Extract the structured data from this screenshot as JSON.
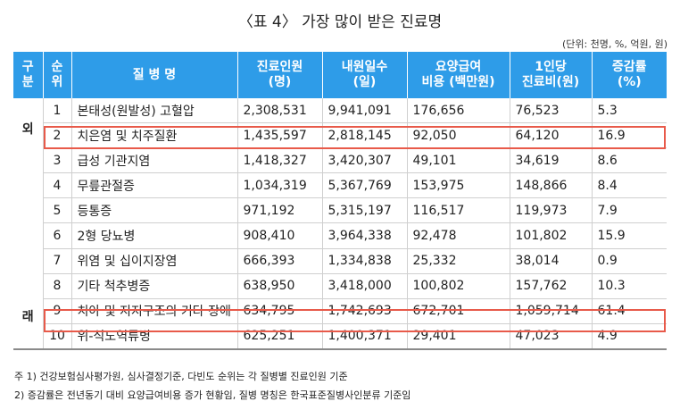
{
  "title": "〈표 4〉 가장 많이 받은 진료명",
  "unit": "(단위: 천명, %, 억원, 원)",
  "headers": {
    "group": [
      "구",
      "분"
    ],
    "rank": [
      "순",
      "위"
    ],
    "disease": "질 병 명",
    "patients": [
      "진료인원",
      "(명)"
    ],
    "days": [
      "내원일수",
      "(일)"
    ],
    "cost": [
      "요양급여",
      "비용 (백만원)"
    ],
    "per_person": [
      "1인당",
      "진료비(원)"
    ],
    "change": [
      "증감률",
      "(%)"
    ]
  },
  "group_label": [
    "외",
    "래"
  ],
  "rows": [
    {
      "rank": "1",
      "disease": "본태성(원발성) 고혈압",
      "patients": "2,308,531",
      "days": "9,941,091",
      "cost": "176,656",
      "per_person": "76,523",
      "change": "5.3"
    },
    {
      "rank": "2",
      "disease": "치은염 및 치주질환",
      "patients": "1,435,597",
      "days": "2,818,145",
      "cost": "92,050",
      "per_person": "64,120",
      "change": "16.9"
    },
    {
      "rank": "3",
      "disease": "급성 기관지염",
      "patients": "1,418,327",
      "days": "3,420,307",
      "cost": "49,101",
      "per_person": "34,619",
      "change": "8.6"
    },
    {
      "rank": "4",
      "disease": "무릎관절증",
      "patients": "1,034,319",
      "days": "5,367,769",
      "cost": "153,975",
      "per_person": "148,866",
      "change": "8.4"
    },
    {
      "rank": "5",
      "disease": "등통증",
      "patients": "971,192",
      "days": "5,315,197",
      "cost": "116,517",
      "per_person": "119,973",
      "change": "7.9"
    },
    {
      "rank": "6",
      "disease": "2형 당뇨병",
      "patients": "908,410",
      "days": "3,964,338",
      "cost": "92,478",
      "per_person": "101,802",
      "change": "15.9"
    },
    {
      "rank": "7",
      "disease": "위염 및 십이지장염",
      "patients": "666,393",
      "days": "1,334,838",
      "cost": "25,332",
      "per_person": "38,014",
      "change": "0.9"
    },
    {
      "rank": "8",
      "disease": "기타 척추병증",
      "patients": "638,950",
      "days": "3,418,000",
      "cost": "100,802",
      "per_person": "157,762",
      "change": "10.3"
    },
    {
      "rank": "9",
      "disease": "치아 및 지지구조의 기타 장애",
      "patients": "634,795",
      "days": "1,742,693",
      "cost": "672,701",
      "per_person": "1,059,714",
      "change": "61.4"
    },
    {
      "rank": "10",
      "disease": "위-식도역류병",
      "patients": "625,251",
      "days": "1,400,371",
      "cost": "29,401",
      "per_person": "47,023",
      "change": "4.9"
    }
  ],
  "notes": [
    "주 1) 건강보험심사평가원, 심사결정기준, 다빈도 순위는 각 질병별 진료인원 기준",
    "2) 증감률은 전년동기 대비 요양급여비용 증가 현황임, 질병 명칭은 한국표준질병사인분류 기준임"
  ],
  "colors": {
    "header": "#2e9ce8",
    "highlight": "#e85a4a"
  }
}
